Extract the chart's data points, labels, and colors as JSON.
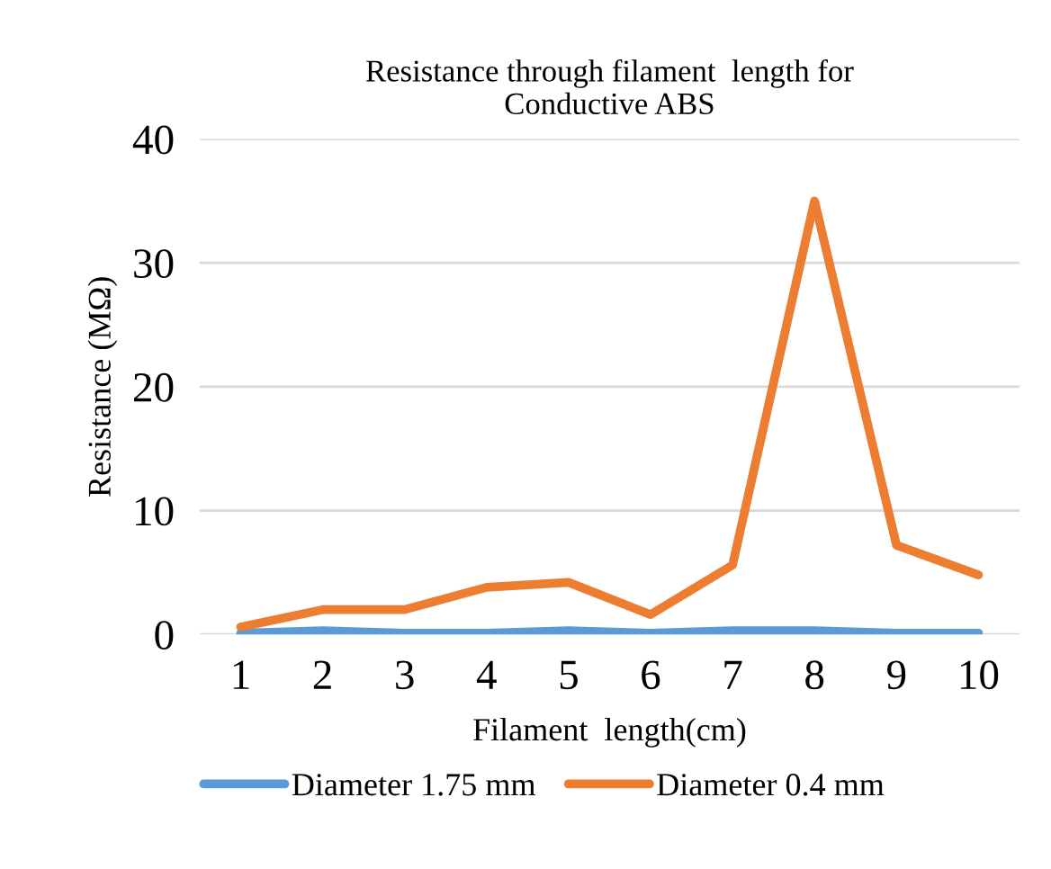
{
  "chart_data": {
    "type": "line",
    "title": "Resistance through filament  length for\nConductive ABS",
    "xlabel": "Filament  length(cm)",
    "ylabel": "Resistance (MΩ)",
    "categories": [
      "1",
      "2",
      "3",
      "4",
      "5",
      "6",
      "7",
      "8",
      "9",
      "10"
    ],
    "series": [
      {
        "name": "Diameter 1.75 mm",
        "color": "#5b9bd5",
        "values": [
          0.1,
          0.3,
          0.1,
          0.1,
          0.3,
          0.1,
          0.3,
          0.3,
          0.1,
          0.1
        ]
      },
      {
        "name": "Diameter 0.4 mm",
        "color": "#ed7d31",
        "values": [
          0.6,
          2.0,
          2.0,
          3.8,
          4.2,
          1.6,
          5.6,
          35,
          7.2,
          4.8
        ]
      }
    ],
    "ylim": [
      0,
      40
    ],
    "yticks": [
      0,
      10,
      20,
      30,
      40
    ],
    "grid": "y",
    "legend": "bottom",
    "marker": "none",
    "line_style": "solid"
  }
}
